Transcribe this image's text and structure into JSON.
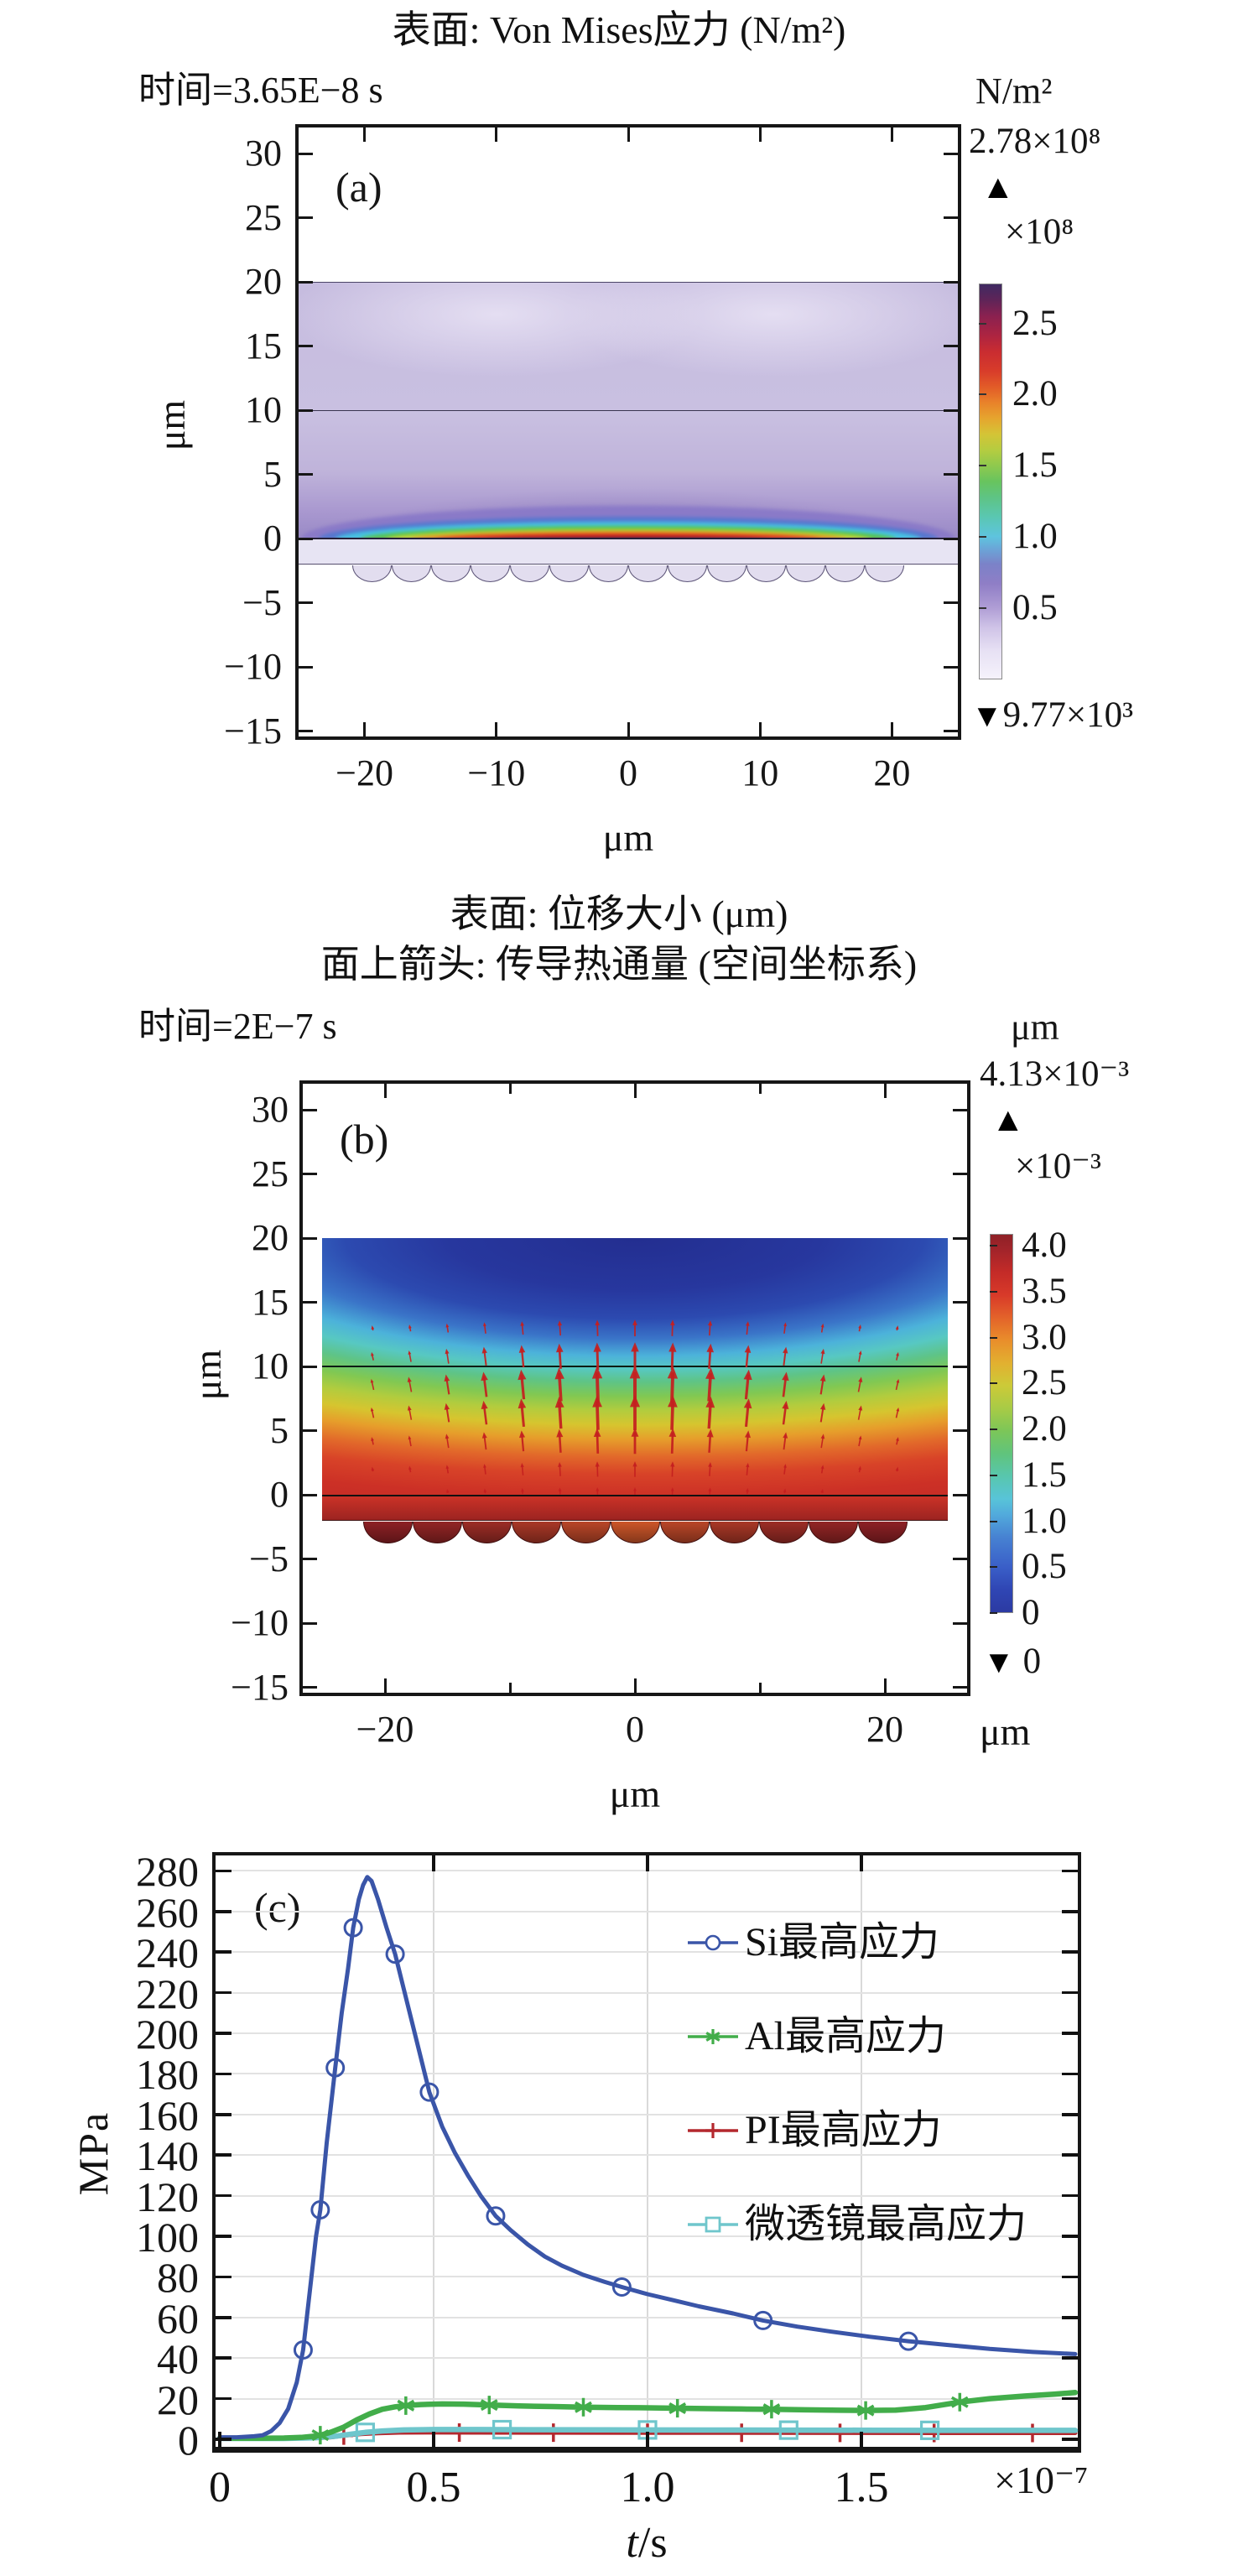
{
  "figure": {
    "background": "#ffffff",
    "up_triangle": "▲",
    "down_triangle": "▼"
  },
  "chart_data": [
    {
      "id": "panel-a",
      "type": "heatmap",
      "panel_label": "(a)",
      "title": "表面: Von Mises应力 (N/m²)",
      "time_label": "时间=3.65E−8 s",
      "x_axis": {
        "unit": "μm",
        "tick_labels": [
          "−20",
          "−10",
          "0",
          "10",
          "20"
        ],
        "tick_values": [
          -20,
          -10,
          0,
          10,
          20
        ],
        "range": [
          -25,
          25
        ]
      },
      "y_axis": {
        "unit": "μm",
        "tick_labels": [
          "30",
          "25",
          "20",
          "15",
          "10",
          "5",
          "0",
          "−5",
          "−10",
          "−15"
        ],
        "tick_values": [
          30,
          25,
          20,
          15,
          10,
          5,
          0,
          -5,
          -10,
          -15
        ],
        "range": [
          -15.5,
          32
        ]
      },
      "layers": {
        "slab_top_um": [
          20,
          10
        ],
        "slab_bottom_um": [
          10,
          0
        ],
        "pi_strip_um": [
          0,
          -2
        ],
        "lens_count": 14,
        "lens_width_um": 3.0,
        "lens_depth_um": 1.3
      },
      "hotspot": "rainbow stress arc centered at x=0 just above y=0",
      "colorbar": {
        "unit": "N/m²",
        "max_annotation": "2.78×10⁸",
        "scale_label": "×10⁸",
        "tick_labels": [
          "2.5",
          "2.0",
          "1.5",
          "1.0",
          "0.5"
        ],
        "tick_values": [
          2.5,
          2.0,
          1.5,
          1.0,
          0.5
        ],
        "range": [
          0,
          2.78
        ],
        "min_annotation": "9.77×10³",
        "gradient": [
          [
            "0%",
            "#f5f2fb"
          ],
          [
            "7%",
            "#e7e1f4"
          ],
          [
            "13%",
            "#cfc3e7"
          ],
          [
            "18%",
            "#af9dd5"
          ],
          [
            "24%",
            "#8f7ec6"
          ],
          [
            "29%",
            "#7b82c8"
          ],
          [
            "33%",
            "#6aa6d8"
          ],
          [
            "36%",
            "#5ec4de"
          ],
          [
            "41%",
            "#5ac7b2"
          ],
          [
            "46%",
            "#5ec484"
          ],
          [
            "50%",
            "#68c45e"
          ],
          [
            "54%",
            "#8fc94e"
          ],
          [
            "58%",
            "#b5cc40"
          ],
          [
            "62%",
            "#d4c436"
          ],
          [
            "66%",
            "#e6a52e"
          ],
          [
            "70%",
            "#e9822a"
          ],
          [
            "74%",
            "#e25b28"
          ],
          [
            "78%",
            "#d83c2a"
          ],
          [
            "83%",
            "#c92c31"
          ],
          [
            "87%",
            "#ad2441"
          ],
          [
            "92%",
            "#8a2150"
          ],
          [
            "96%",
            "#5f2458"
          ],
          [
            "100%",
            "#3f2a62"
          ]
        ]
      }
    },
    {
      "id": "panel-b",
      "type": "heatmap",
      "panel_label": "(b)",
      "title": "表面: 位移大小 (μm)",
      "subtitle": "面上箭头: 传导热通量 (空间坐标系)",
      "time_label": "时间=2E−7 s",
      "x_axis": {
        "unit": "μm",
        "tick_labels": [
          "−20",
          "0",
          "20"
        ],
        "tick_values": [
          -20,
          0,
          20
        ],
        "minor_tick_values": [
          -10,
          10
        ],
        "range": [
          -26.5,
          26.5
        ]
      },
      "y_axis": {
        "unit": "μm",
        "tick_labels": [
          "30",
          "25",
          "20",
          "15",
          "10",
          "5",
          "0",
          "−5",
          "−10",
          "−15"
        ],
        "tick_values": [
          30,
          25,
          20,
          15,
          10,
          5,
          0,
          -5,
          -10,
          -15
        ],
        "range": [
          -15.5,
          32
        ]
      },
      "layers": {
        "domain_um": [
          20,
          -2
        ],
        "lens_count": 11,
        "lens_width_um": 4.0,
        "lens_depth_um": 1.7
      },
      "arrows": {
        "meaning": "conductive heat flux, pointing upward/outward, largest near center",
        "color": "#c41f1f",
        "col_start_um": -21,
        "col_step_um": 3,
        "col_count": 15,
        "rows": [
          {
            "y_um": 13.0,
            "scale": 0.45
          },
          {
            "y_um": 10.8,
            "scale": 0.75
          },
          {
            "y_um": 8.6,
            "scale": 1.0
          },
          {
            "y_um": 6.4,
            "scale": 0.95
          },
          {
            "y_um": 4.2,
            "scale": 0.7
          },
          {
            "y_um": 2.0,
            "scale": 0.42
          },
          {
            "y_um": 0.3,
            "scale": 0.2
          }
        ],
        "max_len_um": 2.9,
        "col_falloff_um": 19
      },
      "colorbar": {
        "unit": "μm",
        "max_annotation": "4.13×10⁻³",
        "scale_label": "×10⁻³",
        "tick_labels": [
          "4.0",
          "3.5",
          "3.0",
          "2.5",
          "2.0",
          "1.5",
          "1.0",
          "0.5",
          "0"
        ],
        "tick_values": [
          4.0,
          3.5,
          3.0,
          2.5,
          2.0,
          1.5,
          1.0,
          0.5,
          0
        ],
        "range": [
          0,
          4.13
        ],
        "min_annotation": "0",
        "gradient": [
          [
            "0%",
            "#2c3aa2"
          ],
          [
            "6%",
            "#2f46b4"
          ],
          [
            "12%",
            "#3a5fc8"
          ],
          [
            "20%",
            "#4783d2"
          ],
          [
            "26%",
            "#52abdc"
          ],
          [
            "30%",
            "#58c4d8"
          ],
          [
            "36%",
            "#58c6ae"
          ],
          [
            "42%",
            "#60c47c"
          ],
          [
            "48%",
            "#7cc658"
          ],
          [
            "54%",
            "#a8cb46"
          ],
          [
            "60%",
            "#ccca38"
          ],
          [
            "66%",
            "#e2b030"
          ],
          [
            "72%",
            "#e98e2b"
          ],
          [
            "78%",
            "#e3632a"
          ],
          [
            "84%",
            "#d83a29"
          ],
          [
            "90%",
            "#c42b28"
          ],
          [
            "96%",
            "#a2242a"
          ],
          [
            "100%",
            "#8e2127"
          ]
        ],
        "plot_gradient": [
          [
            "0%",
            "#232e90"
          ],
          [
            "18%",
            "#27379e"
          ],
          [
            "28%",
            "#2c4ab0"
          ],
          [
            "35%",
            "#3a74c8"
          ],
          [
            "41%",
            "#4cb2da"
          ],
          [
            "45.5%",
            "#57c8c2"
          ],
          [
            "50%",
            "#5ec487"
          ],
          [
            "55%",
            "#80c853"
          ],
          [
            "60%",
            "#b2cc3e"
          ],
          [
            "65%",
            "#d6c52f"
          ],
          [
            "70%",
            "#e69e2b"
          ],
          [
            "76%",
            "#e2692a"
          ],
          [
            "82%",
            "#d84328"
          ],
          [
            "90%",
            "#cc3026"
          ],
          [
            "100%",
            "#c22b25"
          ]
        ],
        "lens_edge_color": "#8e2125",
        "lens_center_color": "#cd5629"
      }
    },
    {
      "id": "panel-c",
      "type": "line",
      "panel_label": "(c)",
      "title": "",
      "ylabel": "MPa",
      "xlabel_var": "t",
      "xlabel_unit": "/s",
      "x_scale_label": "×10⁻⁷",
      "xlim": [
        0,
        2.0
      ],
      "ylim": [
        0,
        289
      ],
      "x_tick_labels": [
        "0",
        "0.5",
        "1.0",
        "1.5"
      ],
      "x_tick_values": [
        0,
        0.5,
        1.0,
        1.5
      ],
      "y_tick_min": 0,
      "y_tick_max": 280,
      "y_tick_step": 20,
      "grid": true,
      "legend_position": "top-right",
      "series": [
        {
          "name": "Si最高应力",
          "color": "#3a55a8",
          "marker": "circle",
          "line_width": 5,
          "x": [
            0,
            0.04,
            0.08,
            0.1,
            0.12,
            0.14,
            0.16,
            0.18,
            0.195,
            0.21,
            0.225,
            0.235,
            0.25,
            0.27,
            0.285,
            0.3,
            0.312,
            0.325,
            0.335,
            0.345,
            0.355,
            0.37,
            0.39,
            0.41,
            0.43,
            0.45,
            0.47,
            0.49,
            0.52,
            0.55,
            0.58,
            0.61,
            0.645,
            0.68,
            0.72,
            0.76,
            0.8,
            0.85,
            0.9,
            0.94,
            1.0,
            1.06,
            1.12,
            1.2,
            1.27,
            1.35,
            1.43,
            1.52,
            1.61,
            1.7,
            1.8,
            1.9,
            2.0
          ],
          "y": [
            1,
            1,
            1.5,
            2,
            4,
            8,
            15,
            28,
            44,
            72,
            100,
            113,
            146,
            183,
            210,
            232,
            252,
            266,
            273,
            277,
            275,
            266,
            252,
            239,
            222,
            205,
            188,
            171,
            154,
            141,
            130,
            120,
            110,
            103,
            96,
            90,
            85.5,
            81,
            77.5,
            75,
            71.5,
            68.5,
            65.5,
            62,
            58.5,
            55.5,
            53,
            50.5,
            48.3,
            46.5,
            44.5,
            43,
            42
          ],
          "marker_x": [
            0.195,
            0.235,
            0.27,
            0.312,
            0.41,
            0.49,
            0.645,
            0.94,
            1.27,
            1.61
          ],
          "marker_y": [
            44,
            113,
            183,
            252,
            239,
            171,
            110,
            75,
            58.5,
            48.3
          ]
        },
        {
          "name": "Al最高应力",
          "color": "#42ad4a",
          "marker": "star",
          "line_width": 6.5,
          "x": [
            0,
            0.1,
            0.15,
            0.19,
            0.22,
            0.235,
            0.26,
            0.29,
            0.32,
            0.35,
            0.38,
            0.41,
            0.435,
            0.47,
            0.52,
            0.57,
            0.63,
            0.7,
            0.78,
            0.85,
            0.93,
            1.0,
            1.07,
            1.15,
            1.22,
            1.29,
            1.37,
            1.45,
            1.51,
            1.58,
            1.65,
            1.73,
            1.8,
            1.88,
            1.95,
            2.0
          ],
          "y": [
            0.5,
            0.5,
            0.6,
            0.9,
            1.5,
            2,
            3.5,
            6,
            9.5,
            12.5,
            14.8,
            16,
            16.6,
            17.1,
            17.4,
            17.3,
            16.9,
            16.4,
            16.1,
            15.8,
            15.6,
            15.5,
            15.3,
            15.1,
            14.9,
            14.8,
            14.5,
            14.3,
            14.2,
            14.4,
            15.6,
            18.3,
            20.0,
            21.3,
            22.2,
            23
          ],
          "marker_x": [
            0.235,
            0.435,
            0.63,
            0.85,
            1.07,
            1.29,
            1.51,
            1.73
          ],
          "marker_y": [
            2,
            16.6,
            16.9,
            15.8,
            15.3,
            14.8,
            14.2,
            18.3
          ]
        },
        {
          "name": "PI最高应力",
          "color": "#b4282e",
          "marker": "plus",
          "line_width": 5,
          "x": [
            0,
            0.15,
            0.22,
            0.26,
            0.29,
            0.33,
            0.37,
            0.42,
            0.5,
            0.6,
            0.78,
            1.0,
            1.22,
            1.45,
            1.67,
            1.9,
            2.0
          ],
          "y": [
            0.3,
            0.3,
            0.5,
            1.0,
            1.8,
            2.6,
            3.0,
            3.3,
            3.35,
            3.3,
            3.25,
            3.2,
            3.2,
            3.15,
            3.1,
            3.1,
            3.1
          ],
          "marker_x": [
            0.29,
            0.56,
            0.78,
            1.0,
            1.22,
            1.45,
            1.67,
            1.9
          ],
          "marker_y": [
            1.8,
            3.32,
            3.25,
            3.2,
            3.2,
            3.15,
            3.1,
            3.1
          ]
        },
        {
          "name": "微透镜最高应力",
          "color": "#6fc6cc",
          "marker": "square",
          "line_width": 6.5,
          "x": [
            0,
            0.15,
            0.22,
            0.27,
            0.31,
            0.34,
            0.38,
            0.43,
            0.5,
            0.6,
            0.75,
            0.9,
            1.0,
            1.15,
            1.33,
            1.5,
            1.66,
            1.85,
            2.0
          ],
          "y": [
            0.4,
            0.4,
            0.7,
            1.5,
            2.6,
            3.4,
            4.1,
            4.6,
            4.8,
            4.8,
            4.7,
            4.65,
            4.6,
            4.55,
            4.5,
            4.45,
            4.4,
            4.4,
            4.4
          ],
          "marker_x": [
            0.34,
            0.66,
            1.0,
            1.33,
            1.66
          ],
          "marker_y": [
            3.4,
            4.75,
            4.6,
            4.5,
            4.4
          ]
        }
      ]
    }
  ]
}
